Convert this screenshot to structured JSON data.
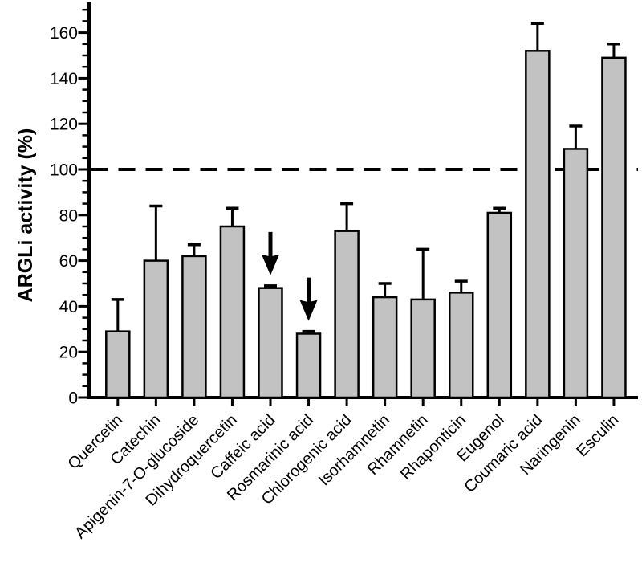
{
  "chart_data": {
    "type": "bar",
    "title": "",
    "ylabel": "ARGLi activity (%)",
    "xlabel": "",
    "ylim": [
      0,
      172
    ],
    "ytick_major_step": 20,
    "ytick_minor_step": 5,
    "ytick_labels": [
      "0",
      "20",
      "40",
      "60",
      "80",
      "100",
      "120",
      "140",
      "160"
    ],
    "grid": false,
    "legend": "none",
    "reference_line": {
      "value": 100,
      "style": "dashed",
      "color": "#000000"
    },
    "bar_fill": "#c2c2c2",
    "bar_stroke": "#000000",
    "axis_color": "#000000",
    "background": "#ffffff",
    "categories": [
      "Quercetin",
      "Catechin",
      "Apigenin-7-O-glucoside",
      "Dihydroquercetin",
      "Caffeic acid",
      "Rosmarinic acid",
      "Chlorogenic acid",
      "Isorhamnetin",
      "Rhamnetin",
      "Rhaponticin",
      "Eugenol",
      "Coumaric acid",
      "Naringenin",
      "Esculin"
    ],
    "values": [
      29,
      60,
      62,
      75,
      48,
      28,
      73,
      44,
      43,
      46,
      81,
      152,
      109,
      149
    ],
    "errors_plus": [
      14,
      24,
      5,
      8,
      1,
      1,
      12,
      6,
      22,
      5,
      2,
      12,
      10,
      6
    ],
    "annotations": [
      {
        "type": "down-arrow",
        "category": "Caffeic acid"
      },
      {
        "type": "down-arrow",
        "category": "Rosmarinic acid"
      }
    ]
  }
}
